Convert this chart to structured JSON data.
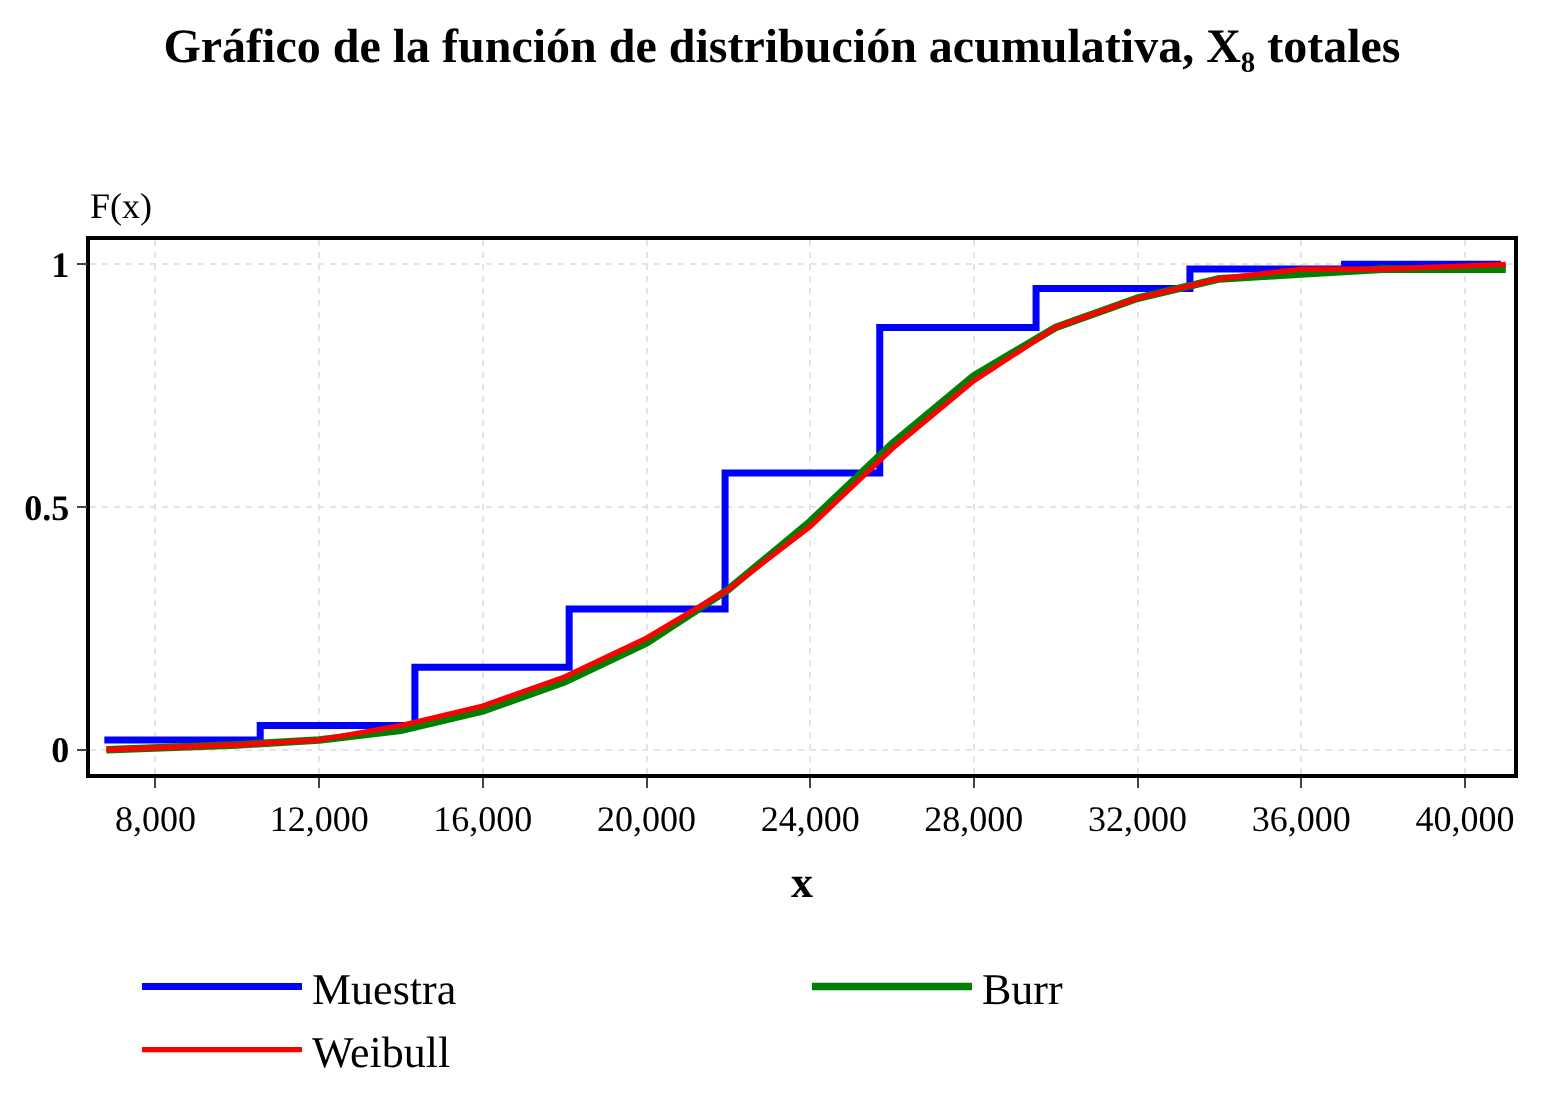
{
  "chart_data": {
    "type": "line",
    "title": "Gráfico de la función de distribución acumulativa, X₈ totales",
    "xlabel": "x",
    "ylabel": "F(x)",
    "xlim": [
      6400,
      41200
    ],
    "ylim": [
      -0.05,
      1.05
    ],
    "xticks": [
      {
        "value": 8000,
        "label": "8,000"
      },
      {
        "value": 12000,
        "label": "12,000"
      },
      {
        "value": 16000,
        "label": "16,000"
      },
      {
        "value": 20000,
        "label": "20,000"
      },
      {
        "value": 24000,
        "label": "24,000"
      },
      {
        "value": 28000,
        "label": "28,000"
      },
      {
        "value": 32000,
        "label": "32,000"
      },
      {
        "value": 36000,
        "label": "36,000"
      },
      {
        "value": 40000,
        "label": "40,000"
      }
    ],
    "yticks": [
      0,
      0.5,
      1
    ],
    "grid": true,
    "legend": "bottom",
    "marker": "none",
    "series": [
      {
        "name": "Muestra",
        "type": "step",
        "color": "#0000ff",
        "x": [
          6750,
          10560,
          14340,
          18110,
          21920,
          25700,
          29520,
          33280,
          37060,
          40880
        ],
        "values": [
          0.02,
          0.05,
          0.17,
          0.29,
          0.57,
          0.87,
          0.95,
          0.99,
          1.0,
          1.0
        ]
      },
      {
        "name": "Burr",
        "color": "#008000",
        "x": [
          6800,
          10000,
          12000,
          14000,
          16000,
          18000,
          20000,
          22000,
          24000,
          26000,
          28000,
          30000,
          32000,
          34000,
          36000,
          38000,
          41000
        ],
        "values": [
          0.0,
          0.01,
          0.02,
          0.04,
          0.08,
          0.14,
          0.22,
          0.33,
          0.47,
          0.63,
          0.77,
          0.87,
          0.93,
          0.97,
          0.98,
          0.99,
          0.99
        ]
      },
      {
        "name": "Weibull",
        "color": "#ff0000",
        "x": [
          6800,
          10000,
          12000,
          14000,
          16000,
          18000,
          20000,
          22000,
          24000,
          26000,
          28000,
          30000,
          32000,
          34000,
          36000,
          38000,
          41000
        ],
        "values": [
          0.0,
          0.01,
          0.02,
          0.05,
          0.09,
          0.15,
          0.23,
          0.33,
          0.46,
          0.62,
          0.76,
          0.87,
          0.93,
          0.97,
          0.99,
          0.99,
          1.0
        ]
      }
    ]
  }
}
